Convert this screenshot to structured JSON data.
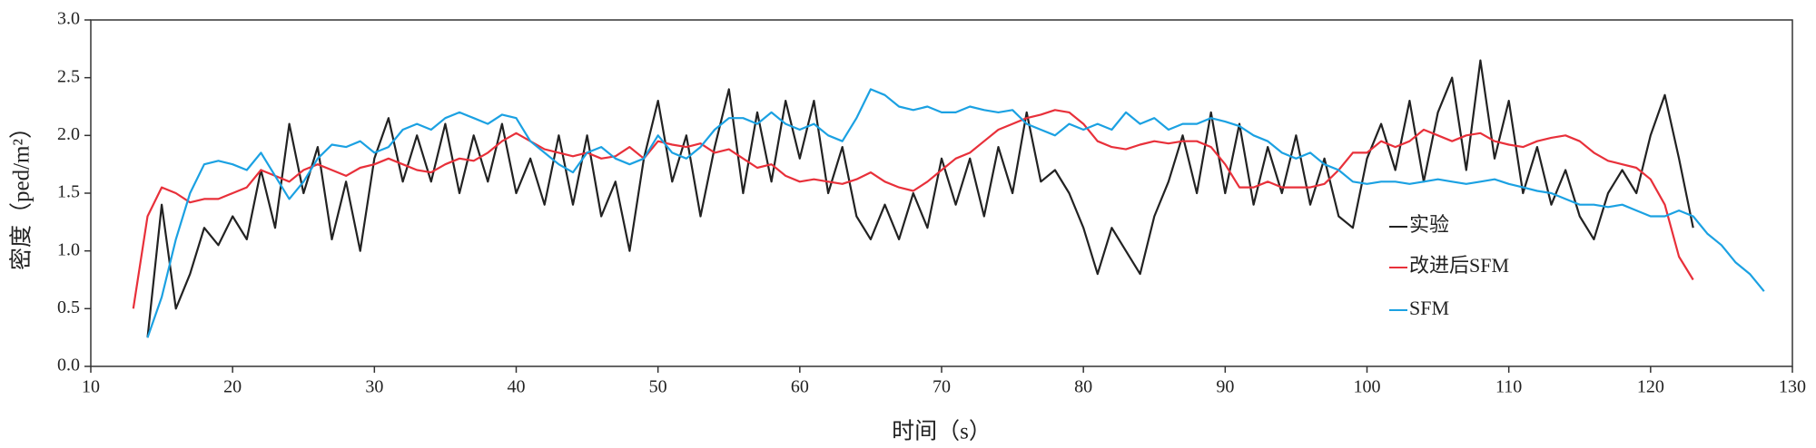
{
  "chart_data": {
    "type": "line",
    "xlabel": "时间（s）",
    "ylabel": "密度（ped/m²）",
    "xlim": [
      10,
      130
    ],
    "xticks": [
      10,
      20,
      30,
      40,
      50,
      60,
      70,
      80,
      90,
      100,
      110,
      120,
      130
    ],
    "ylim": [
      0,
      3
    ],
    "yticks": [
      {
        "value": 0,
        "label": "0.0"
      },
      {
        "value": 0.5,
        "label": "0.5"
      },
      {
        "value": 1,
        "label": "1.0"
      },
      {
        "value": 1.5,
        "label": "1.5"
      },
      {
        "value": 2,
        "label": "2.0"
      },
      {
        "value": 2.5,
        "label": "2.5"
      },
      {
        "value": 3,
        "label": "3.0"
      }
    ],
    "x": [
      13,
      14,
      15,
      16,
      17,
      18,
      19,
      20,
      21,
      22,
      23,
      24,
      25,
      26,
      27,
      28,
      29,
      30,
      31,
      32,
      33,
      34,
      35,
      36,
      37,
      38,
      39,
      40,
      41,
      42,
      43,
      44,
      45,
      46,
      47,
      48,
      49,
      50,
      51,
      52,
      53,
      54,
      55,
      56,
      57,
      58,
      59,
      60,
      61,
      62,
      63,
      64,
      65,
      66,
      67,
      68,
      69,
      70,
      71,
      72,
      73,
      74,
      75,
      76,
      77,
      78,
      79,
      80,
      81,
      82,
      83,
      84,
      85,
      86,
      87,
      88,
      89,
      90,
      91,
      92,
      93,
      94,
      95,
      96,
      97,
      98,
      99,
      100,
      101,
      102,
      103,
      104,
      105,
      106,
      107,
      108,
      109,
      110,
      111,
      112,
      113,
      114,
      115,
      116,
      117,
      118,
      119,
      120,
      121,
      122,
      123,
      124,
      125,
      126,
      127,
      128
    ],
    "series": [
      {
        "name": "实验",
        "color": "#222222",
        "values": [
          null,
          0.25,
          1.4,
          0.5,
          0.8,
          1.2,
          1.05,
          1.3,
          1.1,
          1.7,
          1.2,
          2.1,
          1.5,
          1.9,
          1.1,
          1.6,
          1.0,
          1.8,
          2.15,
          1.6,
          2.0,
          1.6,
          2.1,
          1.5,
          2.0,
          1.6,
          2.1,
          1.5,
          1.8,
          1.4,
          2.0,
          1.4,
          2.0,
          1.3,
          1.6,
          1.0,
          1.8,
          2.3,
          1.6,
          2.0,
          1.3,
          1.9,
          2.4,
          1.5,
          2.2,
          1.6,
          2.3,
          1.8,
          2.3,
          1.5,
          1.9,
          1.3,
          1.1,
          1.4,
          1.1,
          1.5,
          1.2,
          1.8,
          1.4,
          1.8,
          1.3,
          1.9,
          1.5,
          2.2,
          1.6,
          1.7,
          1.5,
          1.2,
          0.8,
          1.2,
          1.0,
          0.8,
          1.3,
          1.6,
          2.0,
          1.5,
          2.2,
          1.5,
          2.1,
          1.4,
          1.9,
          1.5,
          2.0,
          1.4,
          1.8,
          1.3,
          1.2,
          1.8,
          2.1,
          1.7,
          2.3,
          1.6,
          2.2,
          2.5,
          1.7,
          2.65,
          1.8,
          2.3,
          1.5,
          1.9,
          1.4,
          1.7,
          1.3,
          1.1,
          1.5,
          1.7,
          1.5,
          2.0,
          2.35,
          1.8,
          1.2,
          null,
          null,
          null,
          null,
          null
        ]
      },
      {
        "name": "改进后SFM",
        "color": "#e8303a",
        "values": [
          0.5,
          1.3,
          1.55,
          1.5,
          1.42,
          1.45,
          1.45,
          1.5,
          1.55,
          1.7,
          1.65,
          1.6,
          1.7,
          1.75,
          1.7,
          1.65,
          1.72,
          1.75,
          1.8,
          1.75,
          1.7,
          1.68,
          1.75,
          1.8,
          1.78,
          1.85,
          1.95,
          2.02,
          1.95,
          1.88,
          1.85,
          1.82,
          1.85,
          1.8,
          1.82,
          1.9,
          1.8,
          1.95,
          1.92,
          1.9,
          1.93,
          1.85,
          1.88,
          1.8,
          1.72,
          1.75,
          1.65,
          1.6,
          1.62,
          1.6,
          1.58,
          1.62,
          1.68,
          1.6,
          1.55,
          1.52,
          1.6,
          1.7,
          1.8,
          1.85,
          1.95,
          2.05,
          2.1,
          2.15,
          2.18,
          2.22,
          2.2,
          2.1,
          1.95,
          1.9,
          1.88,
          1.92,
          1.95,
          1.93,
          1.95,
          1.95,
          1.9,
          1.75,
          1.55,
          1.55,
          1.6,
          1.55,
          1.55,
          1.55,
          1.58,
          1.7,
          1.85,
          1.85,
          1.95,
          1.9,
          1.95,
          2.05,
          2.0,
          1.95,
          2.0,
          2.02,
          1.95,
          1.92,
          1.9,
          1.95,
          1.98,
          2.0,
          1.95,
          1.85,
          1.78,
          1.75,
          1.72,
          1.62,
          1.4,
          0.95,
          0.75,
          null,
          null,
          null,
          null,
          null
        ]
      },
      {
        "name": "SFM",
        "color": "#1ba1e2",
        "values": [
          null,
          0.25,
          0.6,
          1.1,
          1.5,
          1.75,
          1.78,
          1.75,
          1.7,
          1.85,
          1.65,
          1.45,
          1.6,
          1.8,
          1.92,
          1.9,
          1.95,
          1.85,
          1.9,
          2.05,
          2.1,
          2.05,
          2.15,
          2.2,
          2.15,
          2.1,
          2.18,
          2.15,
          1.95,
          1.85,
          1.75,
          1.68,
          1.85,
          1.9,
          1.8,
          1.75,
          1.8,
          2.0,
          1.85,
          1.8,
          1.9,
          2.05,
          2.15,
          2.15,
          2.1,
          2.2,
          2.1,
          2.05,
          2.1,
          2.0,
          1.95,
          2.15,
          2.4,
          2.35,
          2.25,
          2.22,
          2.25,
          2.2,
          2.2,
          2.25,
          2.22,
          2.2,
          2.22,
          2.1,
          2.05,
          2.0,
          2.1,
          2.05,
          2.1,
          2.05,
          2.2,
          2.1,
          2.15,
          2.05,
          2.1,
          2.1,
          2.15,
          2.12,
          2.08,
          2.0,
          1.95,
          1.85,
          1.8,
          1.85,
          1.75,
          1.7,
          1.6,
          1.58,
          1.6,
          1.6,
          1.58,
          1.6,
          1.62,
          1.6,
          1.58,
          1.6,
          1.62,
          1.58,
          1.55,
          1.52,
          1.5,
          1.45,
          1.4,
          1.4,
          1.38,
          1.4,
          1.35,
          1.3,
          1.3,
          1.35,
          1.3,
          1.15,
          1.05,
          0.9,
          0.8,
          0.65
        ]
      }
    ]
  }
}
